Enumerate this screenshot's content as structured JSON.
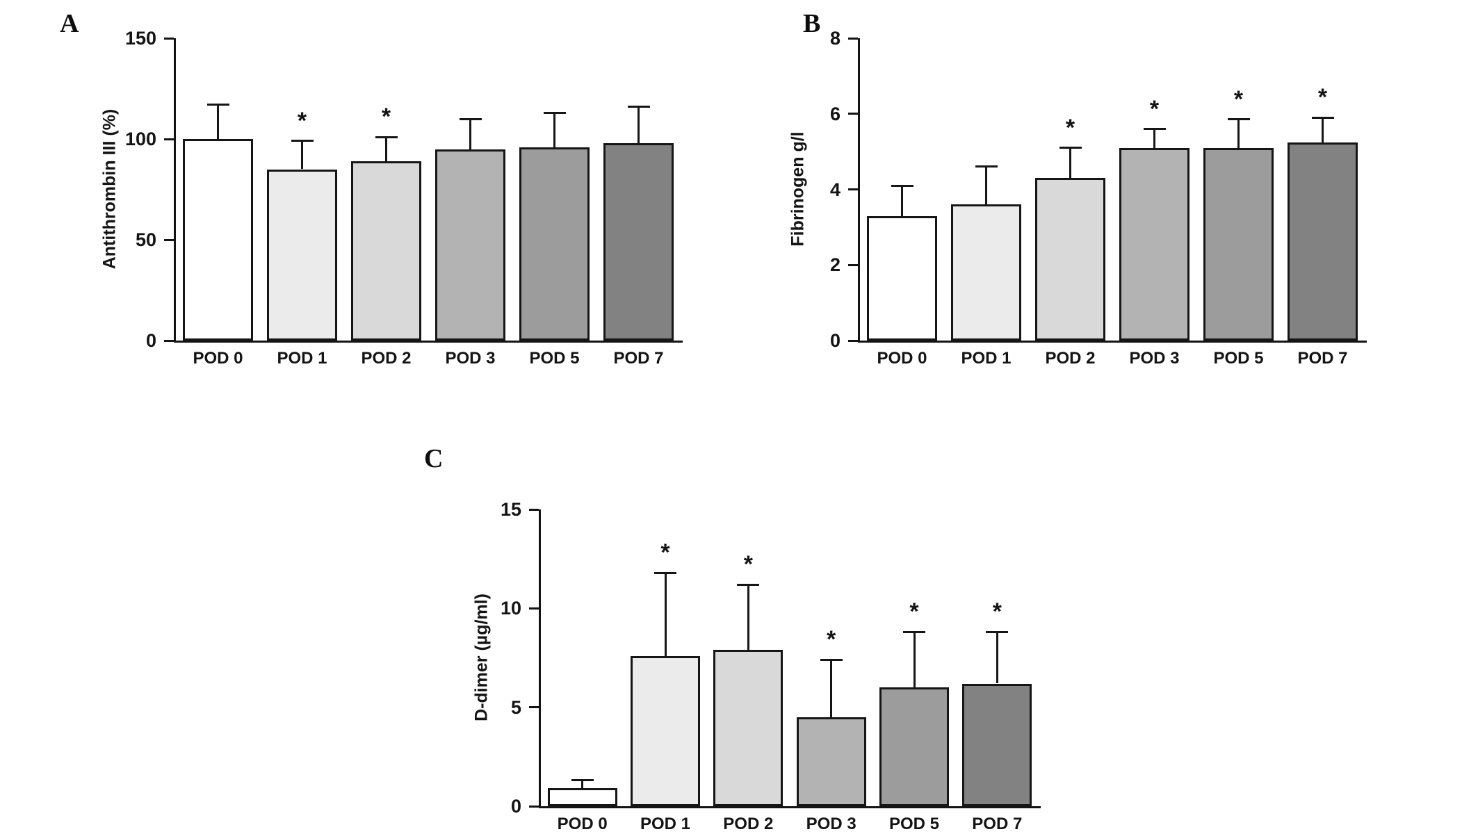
{
  "figure": {
    "background": "#ffffff",
    "text_color": "#141414"
  },
  "bar_colors": [
    "#ffffff",
    "#ebebeb",
    "#d9d9d9",
    "#b3b3b3",
    "#9c9c9c",
    "#828282"
  ],
  "chart_data": [
    {
      "type": "bar",
      "panel_label": "A",
      "title": "",
      "xlabel": "",
      "ylabel": "Antithrombin III (%)",
      "ylim": [
        0,
        150
      ],
      "yticks": [
        0,
        50,
        100,
        150
      ],
      "categories": [
        "POD 0",
        "POD 1",
        "POD 2",
        "POD 3",
        "POD 5",
        "POD 7"
      ],
      "values": [
        100,
        85,
        89,
        95,
        96,
        98
      ],
      "errors_upper": [
        17,
        14,
        12,
        15,
        17,
        18
      ],
      "significance": [
        "",
        "*",
        "*",
        "",
        "",
        ""
      ],
      "error_bar_style": "upper whisker with cap",
      "grid": false,
      "legend": false
    },
    {
      "type": "bar",
      "panel_label": "B",
      "title": "",
      "xlabel": "",
      "ylabel": "Fibrinogen g/l",
      "ylim": [
        0,
        8
      ],
      "yticks": [
        0,
        2,
        4,
        6,
        8
      ],
      "categories": [
        "POD 0",
        "POD 1",
        "POD 2",
        "POD 3",
        "POD 5",
        "POD 7"
      ],
      "values": [
        3.3,
        3.6,
        4.3,
        5.1,
        5.1,
        5.25
      ],
      "errors_upper": [
        0.8,
        1.0,
        0.8,
        0.5,
        0.75,
        0.65
      ],
      "significance": [
        "",
        "",
        "*",
        "*",
        "*",
        "*"
      ],
      "error_bar_style": "upper whisker with cap",
      "grid": false,
      "legend": false
    },
    {
      "type": "bar",
      "panel_label": "C",
      "title": "",
      "xlabel": "",
      "ylabel": "D-dimer (µg/ml)",
      "ylim": [
        0,
        15
      ],
      "yticks": [
        0,
        5,
        10,
        15
      ],
      "categories": [
        "POD 0",
        "POD 1",
        "POD 2",
        "POD 3",
        "POD 5",
        "POD 7"
      ],
      "values": [
        0.9,
        7.6,
        7.9,
        4.5,
        6.0,
        6.2
      ],
      "errors_upper": [
        0.4,
        4.2,
        3.3,
        2.9,
        2.8,
        2.6
      ],
      "significance": [
        "",
        "*",
        "*",
        "*",
        "*",
        "*"
      ],
      "error_bar_style": "upper whisker with cap",
      "grid": false,
      "legend": false
    }
  ]
}
